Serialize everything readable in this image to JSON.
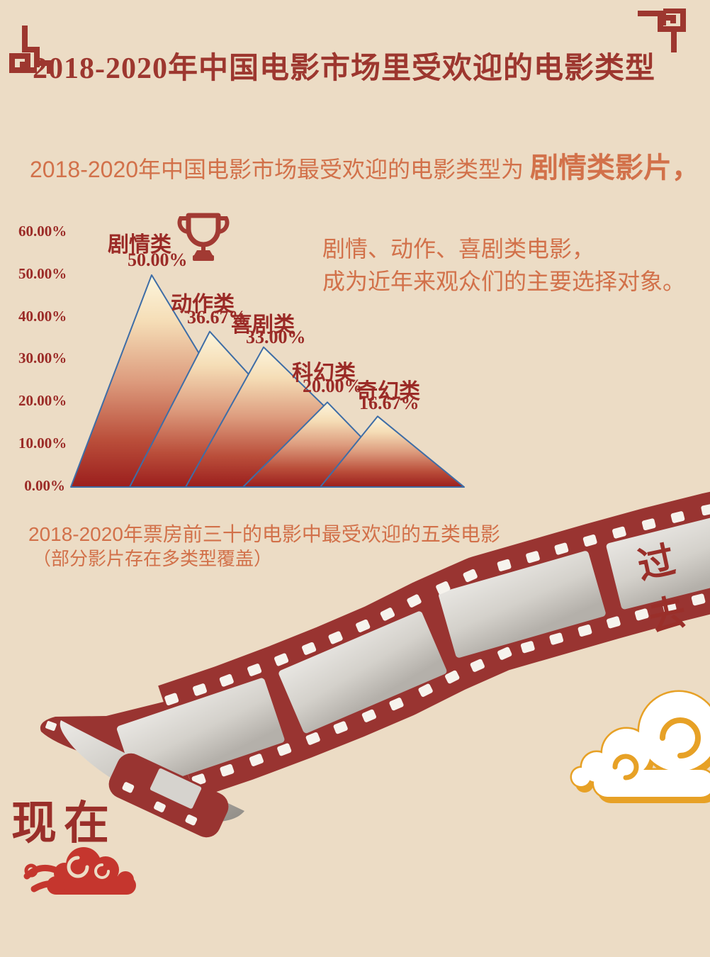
{
  "page": {
    "background": "#ecdcc5"
  },
  "header": {
    "title": "2018-2020年中国电影市场里受欢迎的电影类型"
  },
  "intro": {
    "lead": "2018-2020年中国电影市场最受欢迎的电影类型为 ",
    "highlight": "剧情类影片，"
  },
  "chart_data": {
    "type": "area",
    "style": "overlapping-triangle-peaks",
    "categories": [
      "剧情类",
      "动作类",
      "喜剧类",
      "科幻类",
      "奇幻类"
    ],
    "values": [
      50.0,
      36.67,
      33.0,
      20.0,
      16.67
    ],
    "value_labels": [
      "50.00%",
      "36.67%",
      "33.00%",
      "20.00%",
      "16.67%"
    ],
    "y_ticks": [
      "60.00%",
      "50.00%",
      "40.00%",
      "30.00%",
      "20.00%",
      "10.00%",
      "0.00%"
    ],
    "ylim": [
      0,
      60
    ],
    "grid": false,
    "legend": "none",
    "winner_category": "剧情类",
    "caption_line1": "2018-2020年票房前三十的电影中最受欢迎的五类电影",
    "caption_line2": "（部分影片存在多类型覆盖）"
  },
  "side_note": {
    "line1": "剧情、动作、喜剧类电影，",
    "line2": "成为近年来观众们的主要选择对象。"
  },
  "timeline": {
    "past": "过去",
    "present": "现在"
  },
  "colors": {
    "background": "#ecdcc5",
    "deep_red": "#9d372f",
    "label_red": "#9b2b27",
    "orange": "#d2714a",
    "film_red": "#993431",
    "mountain_stroke": "#3e6da6",
    "gold": "#e7a126",
    "cloud_red": "#c5362e"
  },
  "icons": {
    "trophy": "trophy-icon",
    "corner_left": "fret-corner-icon",
    "corner_right": "fret-corner-icon",
    "film": "film-strip",
    "clouds": [
      "gold-cloud",
      "red-cloud"
    ]
  }
}
